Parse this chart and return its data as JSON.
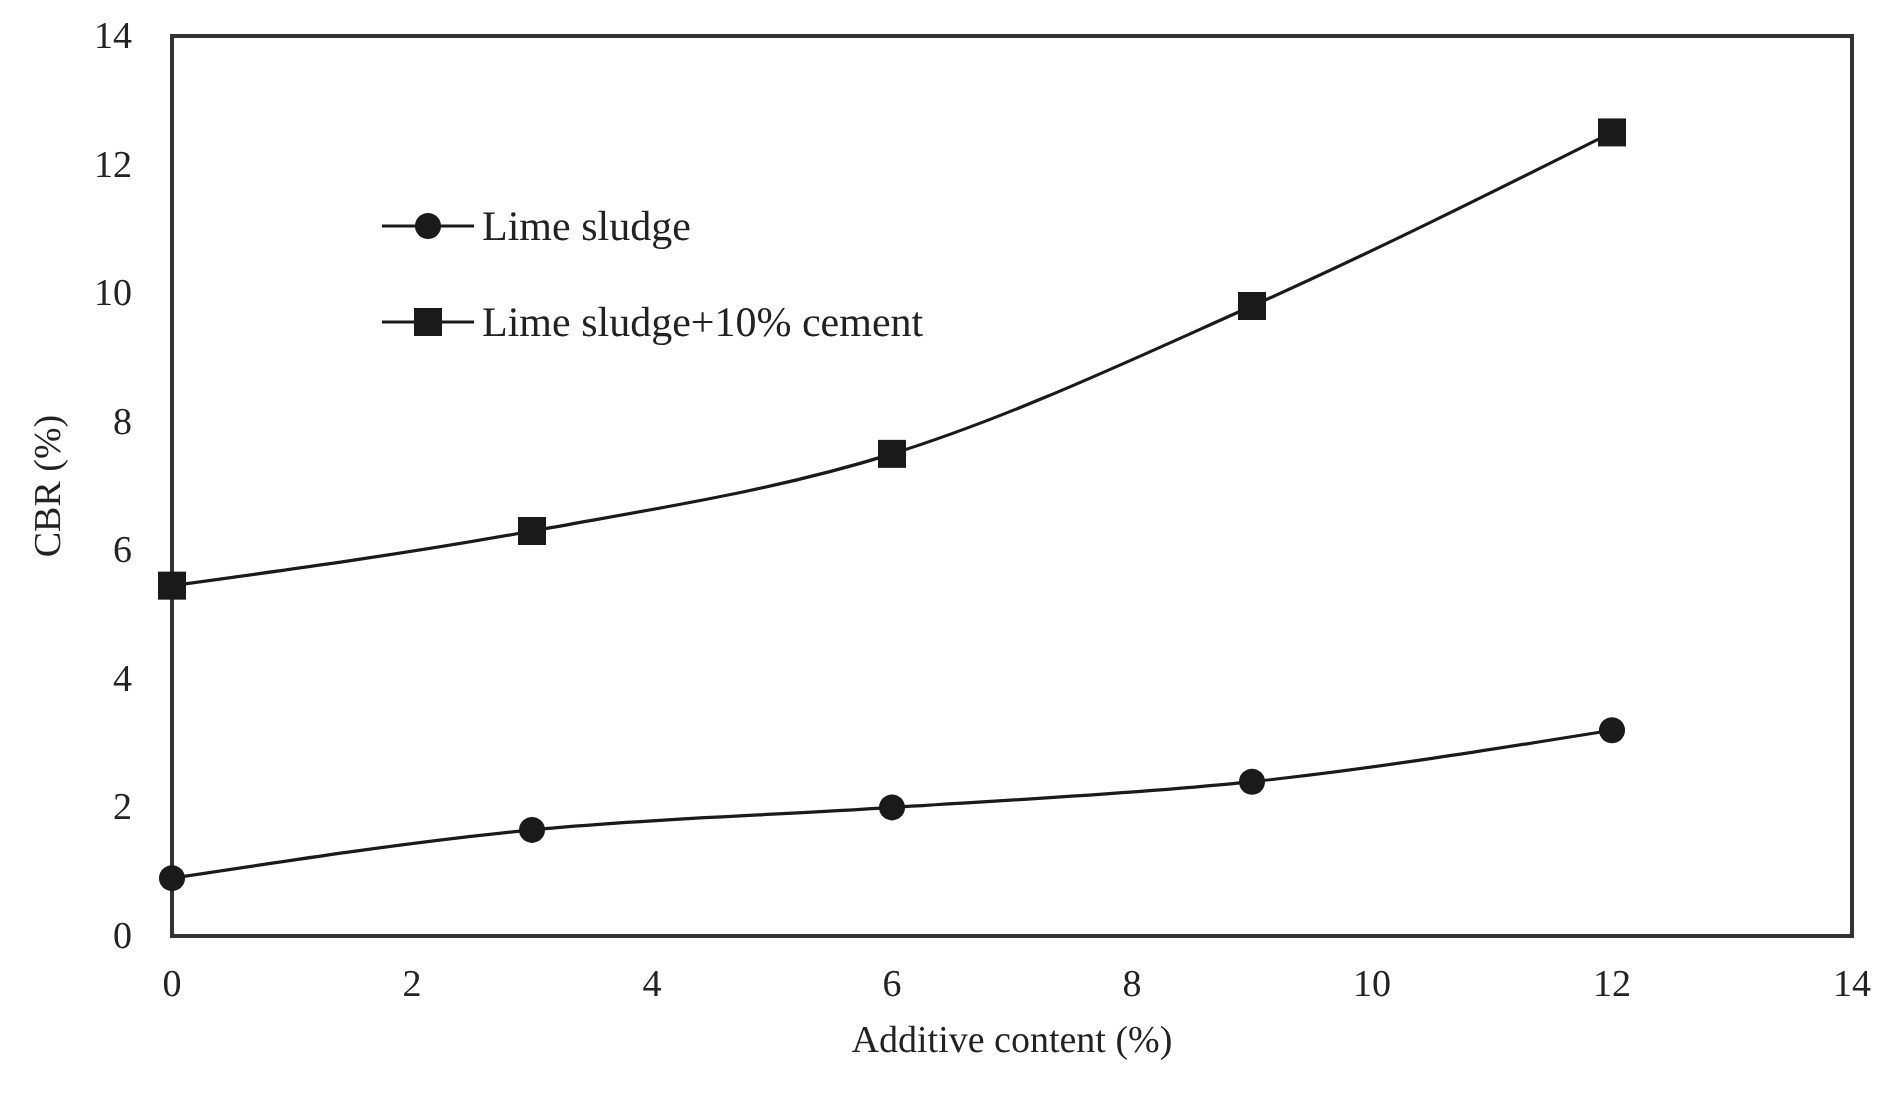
{
  "chart_data": {
    "type": "line",
    "xlabel": "Additive content (%)",
    "ylabel": "CBR (%)",
    "x": [
      0,
      3,
      6,
      9,
      12
    ],
    "series": [
      {
        "name": "Lime sludge",
        "color": "#1a1a1a",
        "marker": "circle",
        "values": [
          0.9,
          1.65,
          2.0,
          2.4,
          3.2
        ]
      },
      {
        "name": "Lime sludge+10% cement",
        "color": "#1a1a1a",
        "marker": "square",
        "values": [
          5.45,
          6.3,
          7.5,
          9.8,
          12.5
        ]
      }
    ],
    "xlim": [
      0,
      14
    ],
    "xticks": [
      0,
      2,
      4,
      6,
      8,
      10,
      12,
      14
    ],
    "ylim": [
      0,
      14
    ],
    "yticks": [
      0,
      2,
      4,
      6,
      8,
      10,
      12,
      14
    ],
    "grid": false,
    "legend": "top left",
    "line_style": "solid"
  }
}
